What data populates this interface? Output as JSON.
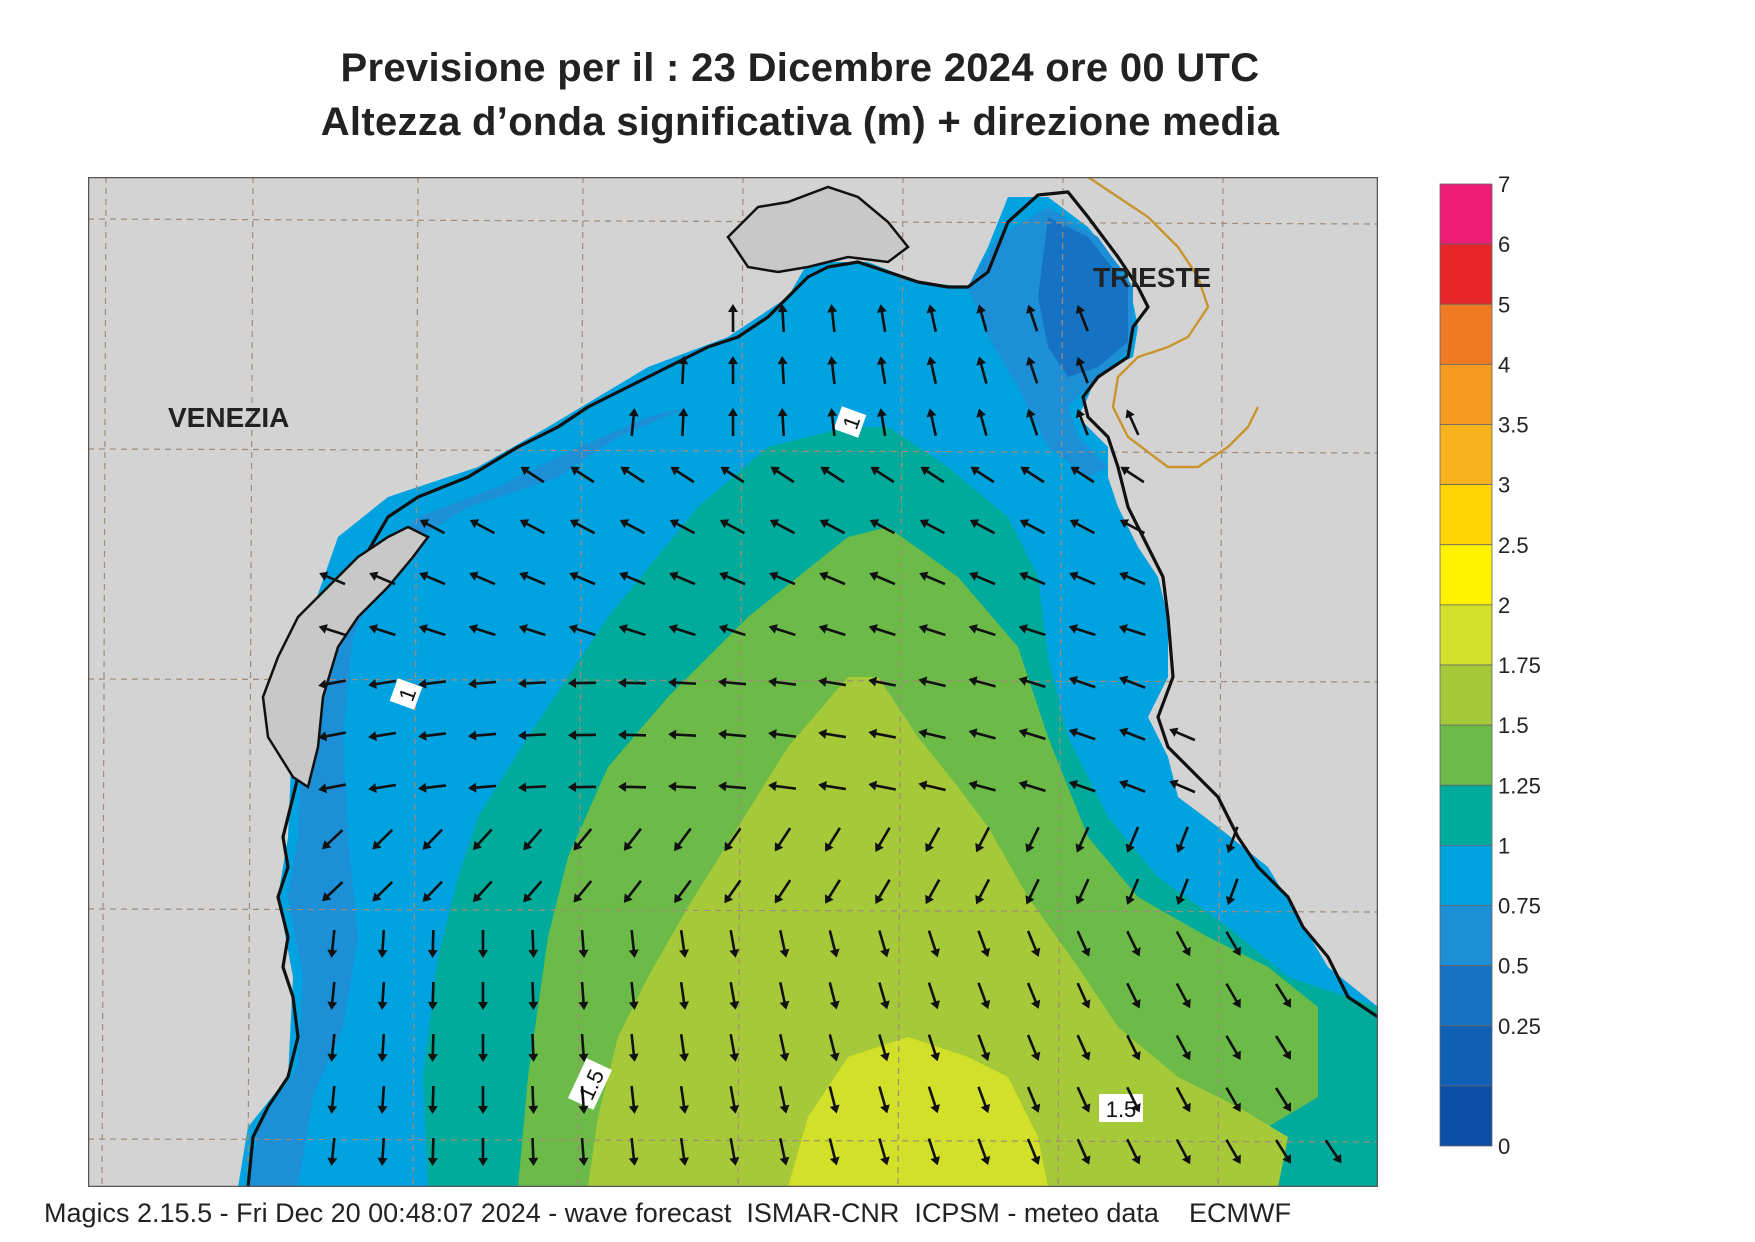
{
  "header": {
    "title_line1": "Previsione per il  :  23 Dicembre  2024   ore 00 UTC",
    "title_line2": "Altezza d’onda significativa (m) + direzione media"
  },
  "map": {
    "city_labels": [
      "VENEZIA",
      "TRIESTE"
    ],
    "contour_labels": [
      "1",
      "1",
      "1.5",
      "1.5"
    ],
    "arrow_direction_summary": "north/northwest in the northern basin turning west-southwest mid-basin and south/southeast in the southern basin"
  },
  "legend": {
    "labels": [
      "7",
      "6",
      "5",
      "4",
      "3.5",
      "3",
      "2.5",
      "2",
      "1.75",
      "1.5",
      "1.25",
      "1",
      "0.75",
      "0.5",
      "0.25",
      "0"
    ],
    "colors": [
      "#ee1c74",
      "#e8262a",
      "#f07a22",
      "#f69a22",
      "#f8b21c",
      "#ffd400",
      "#fff100",
      "#d3e02a",
      "#a6c93a",
      "#6cbb48",
      "#00ab9b",
      "#00a3e0",
      "#1c8fd6",
      "#1672c2",
      "#0f5fb4",
      "#0a4ea8"
    ]
  },
  "footer": {
    "text": "Magics 2.15.5 - Fri Dec 20 00:48:07 2024 - wave forecast  ISMAR-CNR  ICPSM - meteo data    ECMWF"
  }
}
